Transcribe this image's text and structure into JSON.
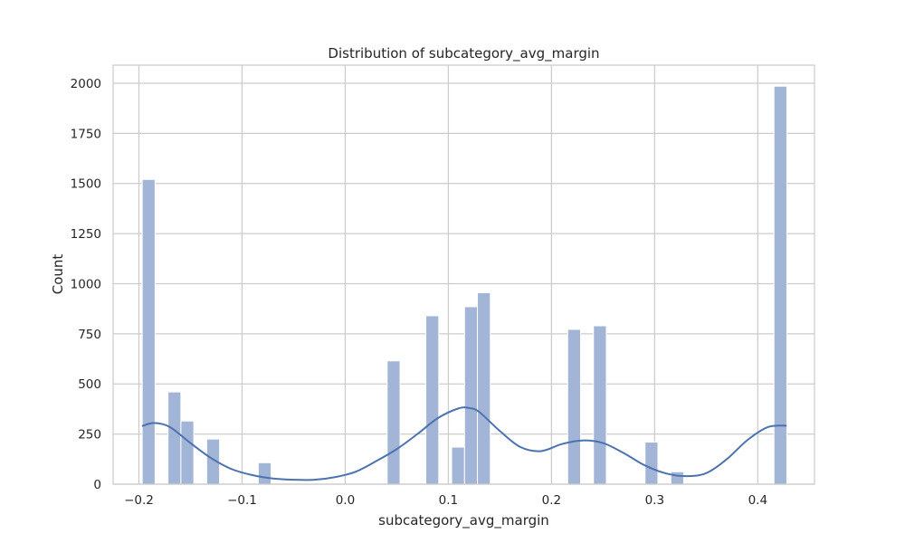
{
  "chart_data": {
    "type": "bar",
    "subtype": "histogram-with-kde",
    "title": "Distribution of subcategory_avg_margin",
    "xlabel": "subcategory_avg_margin",
    "ylabel": "Count",
    "xlim": [
      -0.225,
      0.455
    ],
    "ylim": [
      0,
      2090
    ],
    "xticks": [
      -0.2,
      -0.1,
      0.0,
      0.1,
      0.2,
      0.3,
      0.4
    ],
    "xtick_labels": [
      "−0.2",
      "−0.1",
      "0.0",
      "0.1",
      "0.2",
      "0.3",
      "0.4"
    ],
    "yticks": [
      0,
      250,
      500,
      750,
      1000,
      1250,
      1500,
      1750,
      2000
    ],
    "ytick_labels": [
      "0",
      "250",
      "500",
      "750",
      "1000",
      "1250",
      "1500",
      "1750",
      "2000"
    ],
    "grid": true,
    "bin_width": 0.0125,
    "bars": [
      {
        "x0": -0.1968,
        "value": 1520
      },
      {
        "x0": -0.1718,
        "value": 460
      },
      {
        "x0": -0.1593,
        "value": 315
      },
      {
        "x0": -0.1343,
        "value": 225
      },
      {
        "x0": -0.0843,
        "value": 107
      },
      {
        "x0": 0.0407,
        "value": 615
      },
      {
        "x0": 0.0782,
        "value": 840
      },
      {
        "x0": 0.1032,
        "value": 185
      },
      {
        "x0": 0.1157,
        "value": 885
      },
      {
        "x0": 0.1282,
        "value": 955
      },
      {
        "x0": 0.2157,
        "value": 772
      },
      {
        "x0": 0.2407,
        "value": 790
      },
      {
        "x0": 0.2907,
        "value": 210
      },
      {
        "x0": 0.3157,
        "value": 62
      },
      {
        "x0": 0.4157,
        "value": 1985
      }
    ],
    "kde": {
      "x": [
        -0.197,
        -0.185,
        -0.17,
        -0.15,
        -0.13,
        -0.11,
        -0.09,
        -0.07,
        -0.05,
        -0.03,
        -0.01,
        0.01,
        0.03,
        0.05,
        0.07,
        0.09,
        0.11,
        0.12,
        0.13,
        0.15,
        0.17,
        0.19,
        0.21,
        0.23,
        0.25,
        0.27,
        0.29,
        0.31,
        0.33,
        0.35,
        0.37,
        0.39,
        0.41,
        0.428
      ],
      "y": [
        290,
        305,
        285,
        205,
        130,
        75,
        45,
        28,
        22,
        22,
        35,
        62,
        115,
        175,
        250,
        330,
        378,
        380,
        360,
        265,
        185,
        165,
        200,
        218,
        205,
        155,
        95,
        55,
        40,
        55,
        125,
        220,
        285,
        292
      ]
    },
    "colors": {
      "bar_fill": "#a3b5d6",
      "bar_stroke": "#ffffff",
      "kde_line": "#4c72b0",
      "grid": "#cccccc",
      "spine": "#cccccc",
      "text": "#262626"
    }
  }
}
